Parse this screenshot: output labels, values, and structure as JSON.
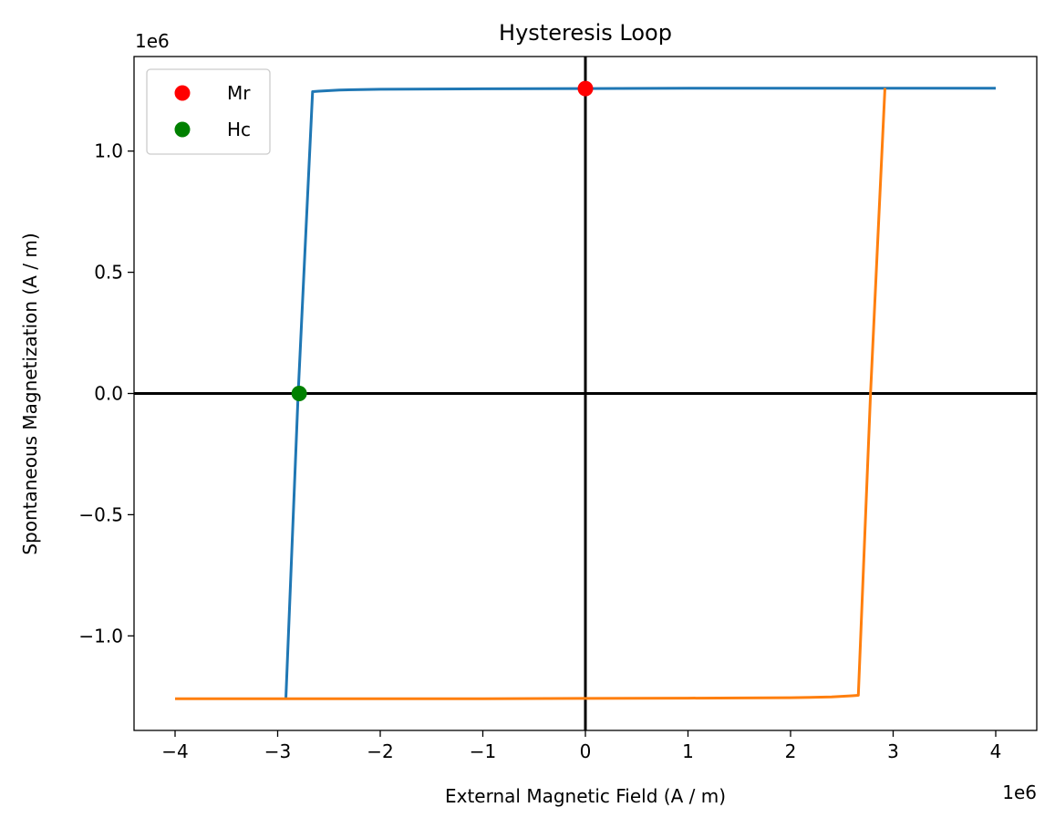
{
  "chart_data": {
    "type": "line",
    "title": "Hysteresis Loop",
    "xlabel": "External Magnetic Field (A / m)",
    "ylabel": "Spontaneous Magnetization (A / m)",
    "x_offset_label": "1e6",
    "y_offset_label": "1e6",
    "xlim": [
      -4.4,
      4.4
    ],
    "ylim": [
      -1.39,
      1.39
    ],
    "xticks": [
      {
        "value": -4,
        "label": "−4"
      },
      {
        "value": -3,
        "label": "−3"
      },
      {
        "value": -2,
        "label": "−2"
      },
      {
        "value": -1,
        "label": "−1"
      },
      {
        "value": 0,
        "label": "0"
      },
      {
        "value": 1,
        "label": "1"
      },
      {
        "value": 2,
        "label": "2"
      },
      {
        "value": 3,
        "label": "3"
      },
      {
        "value": 4,
        "label": "4"
      }
    ],
    "yticks": [
      {
        "value": -1.0,
        "label": "−1.0"
      },
      {
        "value": -0.5,
        "label": "−0.5"
      },
      {
        "value": 0.0,
        "label": "0.0"
      },
      {
        "value": 0.5,
        "label": "0.5"
      },
      {
        "value": 1.0,
        "label": "1.0"
      }
    ],
    "grid": false,
    "legend_position": "top-left",
    "axis_lines": [
      {
        "orientation": "horizontal",
        "value": 0,
        "color": "#000000"
      },
      {
        "orientation": "vertical",
        "value": 0,
        "color": "#000000"
      }
    ],
    "series": [
      {
        "color": "#1f77b4",
        "x": [
          -2.92,
          -2.8,
          -2.66,
          -2.6,
          -2.4,
          -2.0,
          -1.0,
          0.0,
          1.0,
          2.0,
          3.0,
          4.0
        ],
        "y": [
          -1.26,
          0.0,
          1.245,
          1.247,
          1.252,
          1.255,
          1.257,
          1.258,
          1.259,
          1.259,
          1.259,
          1.259
        ]
      },
      {
        "color": "#ff7f0e",
        "x": [
          -4.0,
          -3.0,
          -2.0,
          -1.0,
          0.0,
          1.0,
          2.0,
          2.4,
          2.6,
          2.66,
          2.78,
          2.92
        ],
        "y": [
          -1.259,
          -1.259,
          -1.259,
          -1.259,
          -1.258,
          -1.257,
          -1.255,
          -1.252,
          -1.247,
          -1.245,
          0.0,
          1.26
        ]
      }
    ],
    "markers": [
      {
        "name": "Mr",
        "color": "#ff0000",
        "x": 0.0,
        "y": 1.258
      },
      {
        "name": "Hc",
        "color": "#008000",
        "x": -2.79,
        "y": 0.0
      }
    ]
  }
}
